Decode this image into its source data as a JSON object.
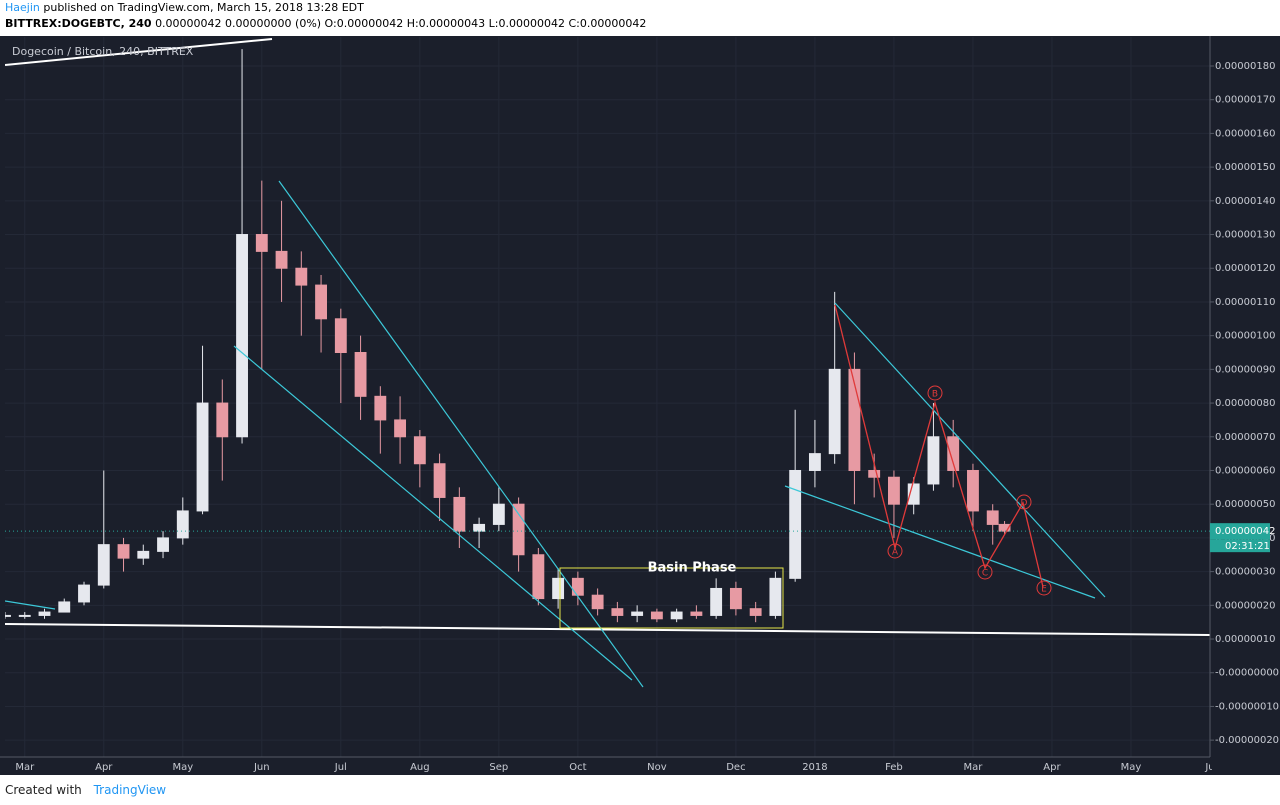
{
  "header": {
    "author": "Haejin",
    "published": "published on TradingView.com, March 15, 2018 13:28 EDT",
    "symbol": "BITTREX:DOGEBTC, 240",
    "quote": "0.00000042 0.00000000 (0%) O:0.00000042 H:0.00000043 L:0.00000042 C:0.00000042"
  },
  "chart_data": {
    "type": "candlestick",
    "title": "Dogecoin / Bitcoin, 240, BITTREX",
    "x": [
      -0.25,
      0,
      0.25,
      0.5,
      0.75,
      1,
      1.25,
      1.5,
      1.75,
      2,
      2.25,
      2.5,
      2.75,
      3,
      3.25,
      3.5,
      3.75,
      4,
      4.25,
      4.5,
      4.75,
      5,
      5.25,
      5.5,
      5.75,
      6,
      6.25,
      6.5,
      6.75,
      7,
      7.25,
      7.5,
      7.75,
      8,
      8.25,
      8.5,
      8.75,
      9,
      9.25,
      9.5,
      9.75,
      10,
      10.25,
      10.5,
      10.75,
      11,
      11.25,
      11.5,
      11.75,
      12,
      12.25,
      12.4
    ],
    "open": [
      1.7e-07,
      1.7e-07,
      1.7e-07,
      1.8e-07,
      2.1e-07,
      2.6e-07,
      3.8e-07,
      3.4e-07,
      3.6e-07,
      4e-07,
      4.8e-07,
      8e-07,
      7e-07,
      1.3e-06,
      1.25e-06,
      1.2e-06,
      1.15e-06,
      1.05e-06,
      9.5e-07,
      8.2e-07,
      7.5e-07,
      7e-07,
      6.2e-07,
      5.2e-07,
      4.2e-07,
      4.4e-07,
      5e-07,
      3.5e-07,
      2.2e-07,
      2.8e-07,
      2.3e-07,
      1.9e-07,
      1.7e-07,
      1.8e-07,
      1.6e-07,
      1.8e-07,
      1.7e-07,
      2.5e-07,
      1.9e-07,
      1.7e-07,
      2.8e-07,
      6e-07,
      6.5e-07,
      9e-07,
      6e-07,
      5.8e-07,
      5e-07,
      5.6e-07,
      7e-07,
      6e-07,
      4.8e-07,
      4.4e-07
    ],
    "high": [
      1.8e-07,
      1.8e-07,
      1.9e-07,
      2.2e-07,
      2.7e-07,
      6e-07,
      4e-07,
      3.8e-07,
      4.2e-07,
      5.2e-07,
      9.7e-07,
      8.7e-07,
      1.85e-06,
      1.46e-06,
      1.4e-06,
      1.25e-06,
      1.18e-06,
      1.08e-06,
      1e-06,
      8.5e-07,
      8.2e-07,
      7.2e-07,
      6.5e-07,
      5.5e-07,
      4.6e-07,
      5.5e-07,
      5.2e-07,
      3.7e-07,
      3.1e-07,
      3e-07,
      2.5e-07,
      2.1e-07,
      2e-07,
      1.9e-07,
      1.9e-07,
      2e-07,
      2.8e-07,
      2.7e-07,
      2.1e-07,
      3e-07,
      7.8e-07,
      7.5e-07,
      1.13e-06,
      9.5e-07,
      6.5e-07,
      6e-07,
      5.8e-07,
      8e-07,
      7.5e-07,
      6.2e-07,
      5e-07,
      4.5e-07
    ],
    "low": [
      1.6e-07,
      1.6e-07,
      1.6e-07,
      1.8e-07,
      2e-07,
      2.5e-07,
      3e-07,
      3.2e-07,
      3.4e-07,
      3.8e-07,
      4.7e-07,
      5.7e-07,
      6.8e-07,
      9e-07,
      1.1e-06,
      1e-06,
      9.5e-07,
      8e-07,
      7.5e-07,
      6.5e-07,
      6.2e-07,
      5.5e-07,
      4.5e-07,
      3.7e-07,
      3.7e-07,
      4.2e-07,
      3e-07,
      2e-07,
      1.9e-07,
      2e-07,
      1.7e-07,
      1.5e-07,
      1.5e-07,
      1.5e-07,
      1.5e-07,
      1.6e-07,
      1.6e-07,
      1.7e-07,
      1.5e-07,
      1.6e-07,
      2.7e-07,
      5.5e-07,
      6.2e-07,
      5e-07,
      5.2e-07,
      4e-07,
      4.7e-07,
      5.4e-07,
      5.5e-07,
      4.2e-07,
      3.8e-07,
      4.1e-07
    ],
    "close": [
      1.7e-07,
      1.7e-07,
      1.8e-07,
      2.1e-07,
      2.6e-07,
      3.8e-07,
      3.4e-07,
      3.6e-07,
      4e-07,
      4.8e-07,
      8e-07,
      7e-07,
      1.3e-06,
      1.25e-06,
      1.2e-06,
      1.15e-06,
      1.05e-06,
      9.5e-07,
      8.2e-07,
      7.5e-07,
      7e-07,
      6.2e-07,
      5.2e-07,
      4.2e-07,
      4.4e-07,
      5e-07,
      3.5e-07,
      2.2e-07,
      2.8e-07,
      2.3e-07,
      1.9e-07,
      1.7e-07,
      1.8e-07,
      1.6e-07,
      1.8e-07,
      1.7e-07,
      2.5e-07,
      1.9e-07,
      1.7e-07,
      2.8e-07,
      6e-07,
      6.5e-07,
      9e-07,
      6e-07,
      5.8e-07,
      5e-07,
      5.6e-07,
      7e-07,
      6e-07,
      4.8e-07,
      4.4e-07,
      4.2e-07
    ],
    "up_color": "#e6e8ee",
    "down_color": "#e79aa3",
    "grid": true,
    "xlim": [
      -0.25,
      15
    ],
    "xticks": [
      {
        "value": 0,
        "label": "Mar"
      },
      {
        "value": 1,
        "label": "Apr"
      },
      {
        "value": 2,
        "label": "May"
      },
      {
        "value": 3,
        "label": "Jun"
      },
      {
        "value": 4,
        "label": "Jul"
      },
      {
        "value": 5,
        "label": "Aug"
      },
      {
        "value": 6,
        "label": "Sep"
      },
      {
        "value": 7,
        "label": "Oct"
      },
      {
        "value": 8,
        "label": "Nov"
      },
      {
        "value": 9,
        "label": "Dec"
      },
      {
        "value": 10,
        "label": "2018"
      },
      {
        "value": 11,
        "label": "Feb"
      },
      {
        "value": 12,
        "label": "Mar"
      },
      {
        "value": 13,
        "label": "Apr"
      },
      {
        "value": 14,
        "label": "May"
      },
      {
        "value": 15,
        "label": "Ju"
      }
    ],
    "ylim": [
      -2.5e-07,
      1.886e-06
    ],
    "yticks": [
      {
        "value": 1.8e-06,
        "label": "0.00000180"
      },
      {
        "value": 1.7e-06,
        "label": "0.00000170"
      },
      {
        "value": 1.6e-06,
        "label": "0.00000160"
      },
      {
        "value": 1.5e-06,
        "label": "0.00000150"
      },
      {
        "value": 1.4e-06,
        "label": "0.00000140"
      },
      {
        "value": 1.3e-06,
        "label": "0.00000130"
      },
      {
        "value": 1.2e-06,
        "label": "0.00000120"
      },
      {
        "value": 1.1e-06,
        "label": "0.00000110"
      },
      {
        "value": 1e-06,
        "label": "0.00000100"
      },
      {
        "value": 9e-07,
        "label": "0.00000090"
      },
      {
        "value": 8e-07,
        "label": "0.00000080"
      },
      {
        "value": 7e-07,
        "label": "0.00000070"
      },
      {
        "value": 6e-07,
        "label": "0.00000060"
      },
      {
        "value": 5e-07,
        "label": "0.00000050"
      },
      {
        "value": 4e-07,
        "label": "0.00000040"
      },
      {
        "value": 3e-07,
        "label": "0.00000030"
      },
      {
        "value": 2e-07,
        "label": "0.00000020"
      },
      {
        "value": 1e-07,
        "label": "0.00000010"
      },
      {
        "value": 0,
        "label": "-0.00000000"
      },
      {
        "value": -1e-07,
        "label": "-0.00000010"
      },
      {
        "value": -2e-07,
        "label": "-0.00000020"
      }
    ],
    "last_price": {
      "value": 4.2e-07,
      "label": "0.00000042"
    },
    "countdown": "02:31:21",
    "annotations": [
      "Basin Phase",
      "A",
      "B",
      "C",
      "D",
      "E"
    ]
  },
  "footer": {
    "created_with": "Created with",
    "brand": "TradingView"
  }
}
